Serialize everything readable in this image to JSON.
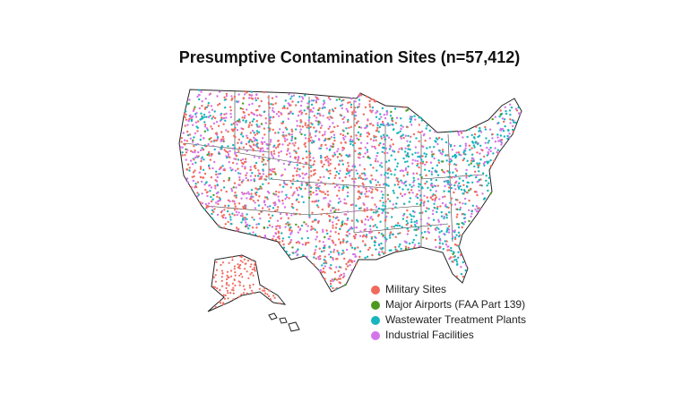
{
  "title": "Presumptive Contamination Sites (n=57,412)",
  "legend": {
    "items": [
      {
        "label": "Military Sites",
        "color": "#f06b5e"
      },
      {
        "label": "Major Airports (FAA Part 139)",
        "color": "#4e9a1f"
      },
      {
        "label": "Wastewater Treatment Plants",
        "color": "#17b5bd"
      },
      {
        "label": "Industrial Facilities",
        "color": "#d474ea"
      }
    ]
  }
}
